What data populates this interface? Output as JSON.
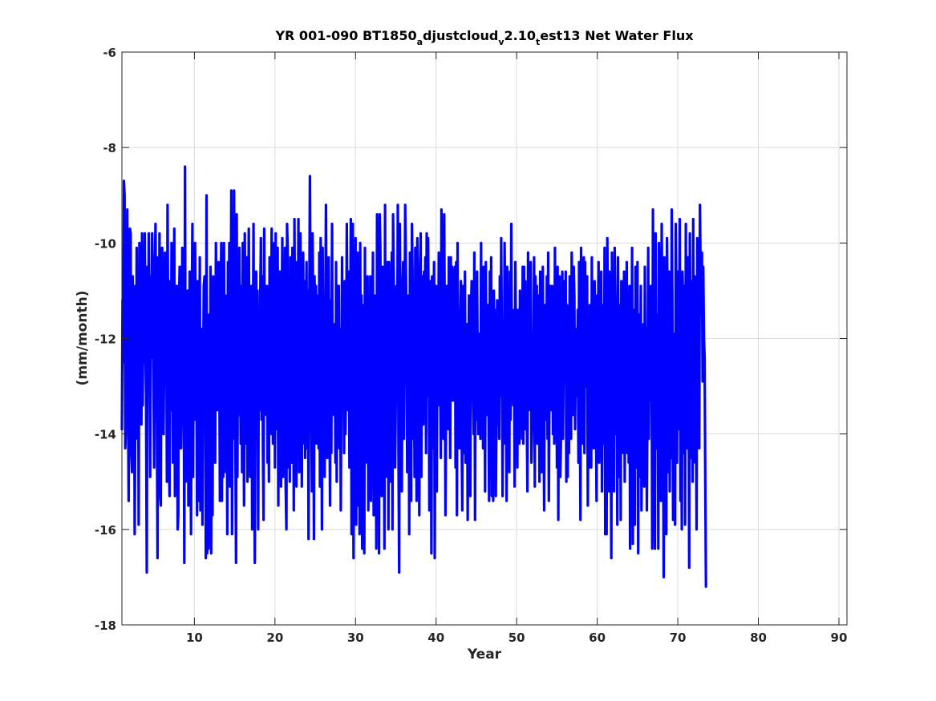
{
  "chart_data": {
    "type": "line",
    "title": {
      "parts": [
        "YR 001-090 BT1850",
        "a",
        "djustcloud",
        "v",
        "2.10",
        "t",
        "est13 Net Water Flux"
      ]
    },
    "xlabel": "Year",
    "ylabel": "(mm/month)",
    "xlim": [
      1,
      91
    ],
    "ylim": [
      -18,
      -6
    ],
    "xticks": [
      10,
      20,
      30,
      40,
      50,
      60,
      70,
      80,
      90
    ],
    "yticks": [
      -18,
      -16,
      -14,
      -12,
      -10,
      -8,
      -6
    ],
    "xtick_labels": [
      "10",
      "20",
      "30",
      "40",
      "50",
      "60",
      "70",
      "80",
      "90"
    ],
    "ytick_labels": [
      "-18",
      "-16",
      "-14",
      "-12",
      "-10",
      "-8",
      "-6"
    ],
    "grid": true,
    "line_color": "#0000ff",
    "series": [
      {
        "x_start": 1.0,
        "x_step": 0.08333,
        "values": [
          -13.9,
          -11.2,
          -12.5,
          -8.7,
          -9.0,
          -14.3,
          -13.8,
          -13.3,
          -9.3,
          -12.9,
          -15.4,
          -11.1,
          -9.7,
          -9.8,
          -14.4,
          -14.8,
          -10.7,
          -12.1,
          -10.9,
          -16.1,
          -13.6,
          -14.1,
          -10.1,
          -13.3,
          -10.6,
          -15.9,
          -10.0,
          -12.9,
          -10.1,
          -13.8,
          -9.8,
          -13.4,
          -10.3,
          -12.5,
          -9.8,
          -12.3,
          -13.2,
          -16.9,
          -10.5,
          -12.5,
          -9.8,
          -11.8,
          -14.9,
          -10.7,
          -12.4,
          -9.8,
          -11.0,
          -12.8,
          -14.7,
          -10.6,
          -9.6,
          -12.4,
          -13.1,
          -16.6,
          -10.3,
          -12.7,
          -9.8,
          -15.3,
          -15.5,
          -10.6,
          -10.1,
          -12.2,
          -14.0,
          -12.4,
          -10.2,
          -12.0,
          -10.9,
          -15.0,
          -9.2,
          -12.3,
          -14.4,
          -15.3,
          -10.8,
          -13.5,
          -10.0,
          -11.5,
          -14.6,
          -12.2,
          -9.7,
          -15.3,
          -12.5,
          -10.9,
          -10.9,
          -16.0,
          -15.7,
          -11.3,
          -10.5,
          -14.1,
          -14.3,
          -13.3,
          -10.1,
          -12.6,
          -11.9,
          -16.7,
          -8.4,
          -15.0,
          -12.3,
          -13.7,
          -11.0,
          -15.5,
          -13.5,
          -10.6,
          -13.4,
          -16.1,
          -11.9,
          -9.6,
          -14.9,
          -11.3,
          -13.7,
          -10.0,
          -11.8,
          -12.6,
          -15.7,
          -10.8,
          -12.1,
          -15.4,
          -10.3,
          -15.6,
          -12.8,
          -11.8,
          -15.9,
          -12.8,
          -10.9,
          -10.7,
          -11.3,
          -16.6,
          -9.0,
          -16.5,
          -13.1,
          -16.4,
          -11.5,
          -15.5,
          -10.5,
          -16.5,
          -11.0,
          -15.7,
          -10.7,
          -13.9,
          -11.1,
          -14.6,
          -10.0,
          -11.5,
          -13.5,
          -11.8,
          -10.4,
          -12.3,
          -15.4,
          -11.4,
          -10.0,
          -15.4,
          -11.1,
          -14.9,
          -10.0,
          -13.0,
          -11.1,
          -14.8,
          -11.4,
          -16.1,
          -10.4,
          -12.5,
          -10.0,
          -15.1,
          -12.5,
          -8.9,
          -16.1,
          -12.2,
          -14.1,
          -8.9,
          -11.8,
          -14.1,
          -16.7,
          -9.4,
          -14.9,
          -11.1,
          -13.6,
          -10.1,
          -12.1,
          -14.2,
          -10.9,
          -14.8,
          -10.0,
          -13.1,
          -15.5,
          -9.8,
          -12.7,
          -14.2,
          -10.3,
          -15.0,
          -12.3,
          -9.7,
          -13.0,
          -14.9,
          -11.6,
          -10.9,
          -16.0,
          -12.6,
          -9.6,
          -14.3,
          -16.7,
          -13.2,
          -10.6,
          -12.4,
          -11.0,
          -16.0,
          -12.2,
          -13.5,
          -11.3,
          -9.9,
          -13.7,
          -10.7,
          -14.3,
          -15.8,
          -9.7,
          -12.7,
          -11.1,
          -13.6,
          -10.9,
          -14.6,
          -11.2,
          -15.0,
          -10.3,
          -12.1,
          -14.0,
          -9.7,
          -12.3,
          -14.2,
          -12.4,
          -10.0,
          -14.7,
          -9.8,
          -13.9,
          -11.6,
          -10.1,
          -15.5,
          -12.1,
          -10.6,
          -11.2,
          -15.1,
          -11.9,
          -9.9,
          -14.9,
          -13.0,
          -12.2,
          -10.1,
          -15.1,
          -16.0,
          -9.6,
          -10.1,
          -14.7,
          -11.9,
          -15.0,
          -10.3,
          -12.5,
          -14.6,
          -10.1,
          -11.3,
          -15.6,
          -9.5,
          -12.2,
          -14.3,
          -15.1,
          -10.4,
          -12.7,
          -9.5,
          -14.8,
          -12.2,
          -9.8,
          -13.0,
          -15.1,
          -11.6,
          -10.2,
          -14.2,
          -10.8,
          -14.5,
          -11.6,
          -10.4,
          -14.3,
          -11.0,
          -16.2,
          -11.9,
          -8.6,
          -11.4,
          -13.2,
          -15.2,
          -9.8,
          -11.5,
          -16.2,
          -10.7,
          -12.4,
          -10.9,
          -14.2,
          -12.1,
          -11.1,
          -14.3,
          -10.2,
          -15.1,
          -9.9,
          -12.2,
          -16.0,
          -10.1,
          -13.5,
          -11.2,
          -14.9,
          -11.6,
          -9.2,
          -12.4,
          -14.5,
          -11.7,
          -10.3,
          -13.0,
          -15.5,
          -11.2,
          -14.4,
          -9.6,
          -13.6,
          -12.1,
          -12.7,
          -11.7,
          -14.6,
          -10.4,
          -15.0,
          -10.9,
          -12.0,
          -10.9,
          -14.3,
          -11.8,
          -15.6,
          -12.9,
          -10.3,
          -13.1,
          -11.3,
          -14.4,
          -10.8,
          -14.0,
          -12.7,
          -9.6,
          -11.8,
          -13.5,
          -10.6,
          -14.7,
          -12.1,
          -9.5,
          -16.1,
          -14.1,
          -9.6,
          -16.6,
          -10.1,
          -13.2,
          -9.9,
          -15.9,
          -11.4,
          -10.2,
          -15.5,
          -11.8,
          -16.1,
          -10.0,
          -14.5,
          -11.1,
          -16.4,
          -12.5,
          -11.3,
          -16.5,
          -10.1,
          -14.6,
          -11.4,
          -13.4,
          -10.7,
          -15.6,
          -11.5,
          -13.7,
          -10.7,
          -15.4,
          -12.0,
          -12.1,
          -10.2,
          -15.7,
          -11.1,
          -15.1,
          -13.0,
          -16.4,
          -9.4,
          -12.9,
          -11.6,
          -16.5,
          -9.4,
          -10.1,
          -12.9,
          -15.3,
          -10.5,
          -12.7,
          -12.1,
          -16.4,
          -9.2,
          -14.7,
          -13.7,
          -14.9,
          -10.4,
          -16.0,
          -10.4,
          -15.0,
          -10.8,
          -12.9,
          -10.2,
          -16.0,
          -9.4,
          -10.8,
          -14.5,
          -14.7,
          -13.2,
          -10.9,
          -12.6,
          -9.2,
          -14.3,
          -16.9,
          -9.6,
          -11.7,
          -14.1,
          -15.2,
          -11.0,
          -10.4,
          -14.1,
          -12.0,
          -9.2,
          -10.5,
          -11.7,
          -14.8,
          -12.6,
          -11.1,
          -16.1,
          -10.2,
          -11.4,
          -15.4,
          -9.6,
          -10.7,
          -14.1,
          -12.2,
          -14.9,
          -10.1,
          -12.5,
          -15.4,
          -9.9,
          -11.1,
          -13.1,
          -15.7,
          -10.8,
          -9.8,
          -14.9,
          -12.0,
          -10.7,
          -13.8,
          -10.6,
          -11.9,
          -10.3,
          -14.4,
          -9.8,
          -13.2,
          -9.9,
          -11.6,
          -15.6,
          -12.7,
          -10.8,
          -16.5,
          -10.7,
          -14.3,
          -12.2,
          -10.4,
          -16.6,
          -12.3,
          -10.9,
          -15.2,
          -11.6,
          -13.4,
          -10.2,
          -12.9,
          -12.4,
          -14.5,
          -9.3,
          -11.1,
          -12.7,
          -14.1,
          -9.4,
          -11.9,
          -15.7,
          -13.0,
          -10.9,
          -12.6,
          -13.9,
          -10.3,
          -11.9,
          -14.5,
          -10.3,
          -12.8,
          -10.5,
          -13.3,
          -12.1,
          -11.0,
          -10.5,
          -14.7,
          -10.4,
          -15.7,
          -10.0,
          -13.1,
          -12.6,
          -14.3,
          -11.7,
          -10.8,
          -13.8,
          -15.6,
          -10.9,
          -11.6,
          -14.4,
          -10.6,
          -14.6,
          -12.5,
          -11.7,
          -15.8,
          -13.2,
          -11.1,
          -14.9,
          -15.3,
          -11.4,
          -10.8,
          -12.3,
          -13.0,
          -14.0,
          -10.2,
          -15.8,
          -11.4,
          -13.7,
          -10.6,
          -12.7,
          -14.0,
          -12.6,
          -11.9,
          -14.1,
          -10.0,
          -13.6,
          -11.0,
          -14.3,
          -10.5,
          -11.8,
          -15.2,
          -10.4,
          -12.5,
          -13.6,
          -11.3,
          -13.1,
          -15.4,
          -10.6,
          -12.8,
          -10.3,
          -15.3,
          -12.3,
          -15.4,
          -11.0,
          -13.0,
          -11.4,
          -15.3,
          -13.7,
          -11.2,
          -13.8,
          -11.3,
          -14.1,
          -10.7,
          -13.2,
          -9.9,
          -12.0,
          -15.3,
          -11.9,
          -14.2,
          -10.0,
          -11.3,
          -12.8,
          -15.4,
          -10.5,
          -14.2,
          -11.2,
          -14.8,
          -10.6,
          -13.7,
          -9.6,
          -13.3,
          -11.6,
          -13.4,
          -11.4,
          -15.1,
          -10.4,
          -12.2,
          -11.9,
          -14.7,
          -11.4,
          -12.3,
          -14.2,
          -11.0,
          -13.1,
          -12.3,
          -14.1,
          -10.5,
          -14.2,
          -10.5,
          -13.9,
          -10.8,
          -12.8,
          -13.4,
          -15.2,
          -10.2,
          -13.5,
          -12.3,
          -11.5,
          -10.4,
          -14.6,
          -13.9,
          -11.9,
          -12.4,
          -10.3,
          -15.1,
          -10.7,
          -12.2,
          -10.9,
          -14.2,
          -12.7,
          -11.1,
          -15.0,
          -10.6,
          -12.2,
          -14.8,
          -11.4,
          -10.5,
          -13.4,
          -15.6,
          -11.3,
          -12.2,
          -13.7,
          -10.7,
          -14.1,
          -10.2,
          -15.4,
          -12.6,
          -10.9,
          -11.5,
          -13.5,
          -10.9,
          -14.0,
          -12.0,
          -14.2,
          -10.1,
          -12.9,
          -11.0,
          -14.7,
          -10.5,
          -15.8,
          -11.6,
          -10.7,
          -14.9,
          -14.1,
          -12.9,
          -10.6,
          -14.1,
          -12.5,
          -10.8,
          -12.9,
          -10.6,
          -15.0,
          -11.3,
          -14.9,
          -11.9,
          -14.4,
          -10.7,
          -12.5,
          -14.1,
          -10.2,
          -11.6,
          -13.6,
          -10.5,
          -11.1,
          -13.9,
          -12.4,
          -11.8,
          -13.2,
          -11.4,
          -14.6,
          -10.4,
          -12.6,
          -15.8,
          -10.1,
          -11.8,
          -14.2,
          -12.7,
          -10.3,
          -14.4,
          -10.4,
          -13.0,
          -12.7,
          -10.7,
          -15.5,
          -12.1,
          -14.7,
          -11.3,
          -12.3,
          -14.7,
          -10.3,
          -13.1,
          -11.3,
          -14.3,
          -10.8,
          -11.7,
          -13.3,
          -15.4,
          -11.1,
          -12.3,
          -10.4,
          -14.6,
          -11.9,
          -13.2,
          -10.6,
          -15.2,
          -12.4,
          -11.3,
          -14.2,
          -10.1,
          -16.1,
          -11.0,
          -16.1,
          -9.9,
          -12.4,
          -15.2,
          -10.6,
          -14.0,
          -12.8,
          -16.6,
          -10.2,
          -13.8,
          -11.5,
          -15.2,
          -10.1,
          -11.2,
          -14.0,
          -12.1,
          -15.9,
          -10.3,
          -12.6,
          -14.9,
          -11.3,
          -15.8,
          -10.8,
          -14.4,
          -12.2,
          -11.8,
          -10.6,
          -15.0,
          -11.6,
          -13.3,
          -10.4,
          -14.4,
          -12.0,
          -14.6,
          -10.9,
          -16.4,
          -12.2,
          -13.6,
          -10.1,
          -16.3,
          -11.4,
          -12.7,
          -15.9,
          -10.5,
          -12.7,
          -14.7,
          -10.4,
          -16.5,
          -11.5,
          -14.9,
          -12.9,
          -10.9,
          -15.6,
          -11.9,
          -14.4,
          -11.7,
          -15.1,
          -10.5,
          -13.8,
          -11.8,
          -15.6,
          -12.8,
          -10.1,
          -14.1,
          -11.5,
          -13.3,
          -10.9,
          -12.4,
          -16.4,
          -9.3,
          -12.0,
          -14.1,
          -16.4,
          -9.8,
          -12.6,
          -14.3,
          -11.5,
          -16.4,
          -10.0,
          -11.8,
          -13.7,
          -15.4,
          -9.6,
          -11.9,
          -13.3,
          -17.0,
          -10.3,
          -14.7,
          -12.0,
          -16.1,
          -9.9,
          -11.6,
          -14.8,
          -10.6,
          -15.2,
          -12.9,
          -14.5,
          -9.3,
          -11.3,
          -15.8,
          -11.9,
          -12.6,
          -15.9,
          -9.6,
          -11.9,
          -14.6,
          -10.6,
          -13.9,
          -12.5,
          -9.5,
          -15.4,
          -13.0,
          -16.0,
          -10.6,
          -11.2,
          -14.4,
          -10.9,
          -15.9,
          -9.6,
          -14.3,
          -13.4,
          -10.3,
          -12.6,
          -16.8,
          -9.8,
          -12.1,
          -14.5,
          -10.8,
          -15.0,
          -9.5,
          -13.0,
          -10.7,
          -14.6,
          -13.0,
          -16.0,
          -9.9,
          -11.6,
          -10.3,
          -14.3,
          -9.2,
          -10.6,
          -11.5,
          -10.2,
          -12.9,
          -10.5,
          -12.0,
          -12.4,
          -15.1,
          -17.2
        ]
      }
    ]
  }
}
